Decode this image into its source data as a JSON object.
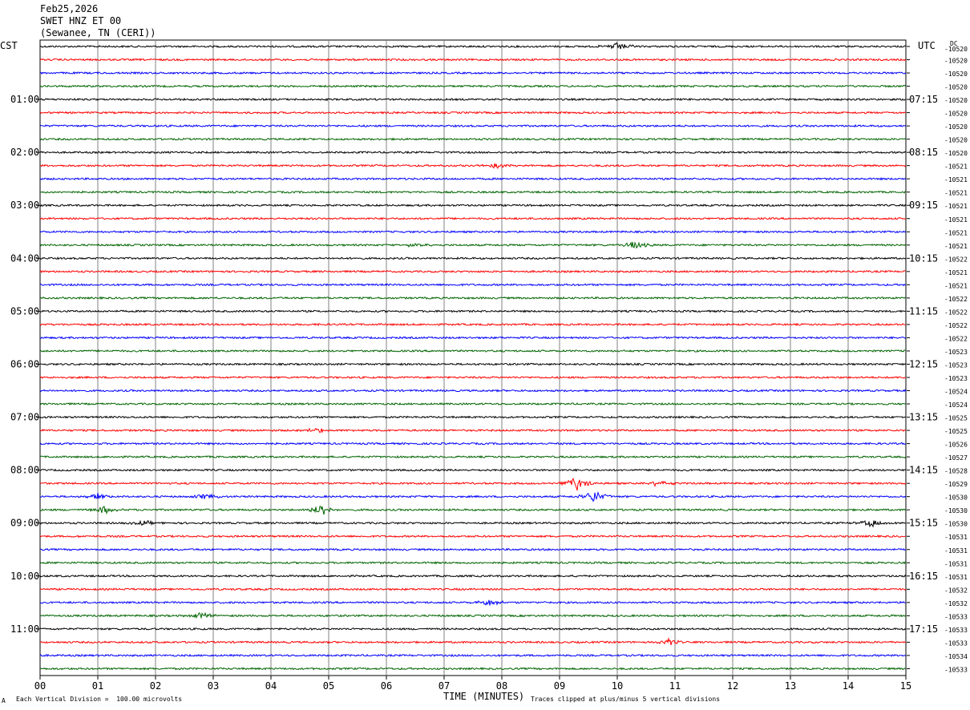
{
  "header": {
    "date": "Feb25,2026",
    "channel": "SWET HNZ ET 00",
    "station": "(Sewanee, TN (CERI))"
  },
  "left_axis_title": "CST",
  "right_axis_title": "UTC",
  "dc_label": "DC",
  "footer": {
    "scale_note": "Each Vertical Division =  100.00 microvolts",
    "xlabel": "TIME (MINUTES)",
    "clip_note": "Traces clipped at plus/minus 5 vertical divisions",
    "corner_mark": "A"
  },
  "colors": {
    "trace_cycle": [
      "#000000",
      "#ff0000",
      "#0000ff",
      "#006400"
    ],
    "grid": "#808080"
  },
  "chart_data": {
    "type": "line",
    "title": "SWET HNZ ET 00",
    "xlabel": "TIME (MINUTES)",
    "xlim": [
      0,
      15
    ],
    "x_ticks": [
      "00",
      "01",
      "02",
      "03",
      "04",
      "05",
      "06",
      "07",
      "08",
      "09",
      "10",
      "11",
      "12",
      "13",
      "14",
      "15"
    ],
    "vertical_division_microvolts": 100.0,
    "clip_divisions": 5,
    "left_hour_labels": [
      {
        "trace": 4,
        "label": "01:00"
      },
      {
        "trace": 8,
        "label": "02:00"
      },
      {
        "trace": 12,
        "label": "03:00"
      },
      {
        "trace": 16,
        "label": "04:00"
      },
      {
        "trace": 20,
        "label": "05:00"
      },
      {
        "trace": 24,
        "label": "06:00"
      },
      {
        "trace": 28,
        "label": "07:00"
      },
      {
        "trace": 32,
        "label": "08:00"
      },
      {
        "trace": 36,
        "label": "09:00"
      },
      {
        "trace": 40,
        "label": "10:00"
      },
      {
        "trace": 44,
        "label": "11:00"
      }
    ],
    "right_hour_labels": [
      {
        "trace": 4,
        "label": "07:15"
      },
      {
        "trace": 8,
        "label": "08:15"
      },
      {
        "trace": 12,
        "label": "09:15"
      },
      {
        "trace": 16,
        "label": "10:15"
      },
      {
        "trace": 20,
        "label": "11:15"
      },
      {
        "trace": 24,
        "label": "12:15"
      },
      {
        "trace": 28,
        "label": "13:15"
      },
      {
        "trace": 32,
        "label": "14:15"
      },
      {
        "trace": 36,
        "label": "15:15"
      },
      {
        "trace": 40,
        "label": "16:15"
      },
      {
        "trace": 44,
        "label": "17:15"
      }
    ],
    "dc_offsets": [
      "-10520",
      "-10520",
      "-10520",
      "-10520",
      "-10520",
      "-10520",
      "-10520",
      "-10520",
      "-10520",
      "-10521",
      "-10521",
      "-10521",
      "-10521",
      "-10521",
      "-10521",
      "-10521",
      "-10522",
      "-10521",
      "-10521",
      "-10522",
      "-10522",
      "-10522",
      "-10522",
      "-10523",
      "-10523",
      "-10523",
      "-10524",
      "-10524",
      "-10525",
      "-10525",
      "-10526",
      "-10527",
      "-10528",
      "-10529",
      "-10530",
      "-10530",
      "-10530",
      "-10531",
      "-10531",
      "-10531",
      "-10531",
      "-10532",
      "-10532",
      "-10533",
      "-10533",
      "-10533",
      "-10534",
      "-10533"
    ],
    "events": [
      {
        "trace": 0,
        "minute": 10.0,
        "amp": 5
      },
      {
        "trace": 9,
        "minute": 7.9,
        "amp": 3
      },
      {
        "trace": 15,
        "minute": 10.3,
        "amp": 5
      },
      {
        "trace": 15,
        "minute": 6.5,
        "amp": 3
      },
      {
        "trace": 29,
        "minute": 4.8,
        "amp": 3
      },
      {
        "trace": 33,
        "minute": 9.3,
        "amp": 9
      },
      {
        "trace": 33,
        "minute": 10.7,
        "amp": 4
      },
      {
        "trace": 34,
        "minute": 9.6,
        "amp": 8
      },
      {
        "trace": 34,
        "minute": 1.0,
        "amp": 4
      },
      {
        "trace": 34,
        "minute": 2.9,
        "amp": 4
      },
      {
        "trace": 35,
        "minute": 4.9,
        "amp": 8
      },
      {
        "trace": 35,
        "minute": 1.1,
        "amp": 5
      },
      {
        "trace": 36,
        "minute": 14.4,
        "amp": 5
      },
      {
        "trace": 36,
        "minute": 1.8,
        "amp": 3
      },
      {
        "trace": 42,
        "minute": 7.8,
        "amp": 4
      },
      {
        "trace": 43,
        "minute": 2.8,
        "amp": 5
      },
      {
        "trace": 45,
        "minute": 10.9,
        "amp": 4
      }
    ]
  }
}
